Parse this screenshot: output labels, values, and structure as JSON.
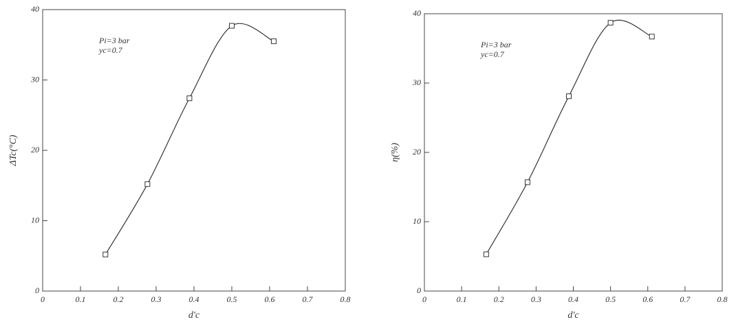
{
  "chart_data": [
    {
      "type": "line",
      "x": [
        0.166,
        0.277,
        0.388,
        0.5,
        0.611
      ],
      "values": [
        5.2,
        15.2,
        27.4,
        37.7,
        35.5
      ],
      "xlim": [
        0,
        0.8
      ],
      "xticks": [
        0,
        0.1,
        0.2,
        0.3,
        0.4,
        0.5,
        0.6,
        0.7,
        0.8
      ],
      "ylim": [
        0,
        40
      ],
      "yticks": [
        0,
        10,
        20,
        30,
        40
      ],
      "xlabel": "d'c",
      "ylabel": "ΔTc(°C)",
      "annotations": [
        "Pi=3 bar",
        "yc=0.7"
      ],
      "color": "#333333",
      "marker": "square"
    },
    {
      "type": "line",
      "x": [
        0.166,
        0.277,
        0.388,
        0.5,
        0.611
      ],
      "values": [
        5.3,
        15.7,
        28.1,
        38.7,
        36.7
      ],
      "xlim": [
        0,
        0.8
      ],
      "xticks": [
        0,
        0.1,
        0.2,
        0.3,
        0.4,
        0.5,
        0.6,
        0.7,
        0.8
      ],
      "ylim": [
        0,
        40
      ],
      "yticks": [
        0,
        10,
        20,
        30,
        40
      ],
      "xlabel": "d'c",
      "ylabel": "η(%)",
      "annotations": [
        "Pi=3 bar",
        "yc=0.7"
      ],
      "color": "#333333",
      "marker": "square"
    }
  ]
}
